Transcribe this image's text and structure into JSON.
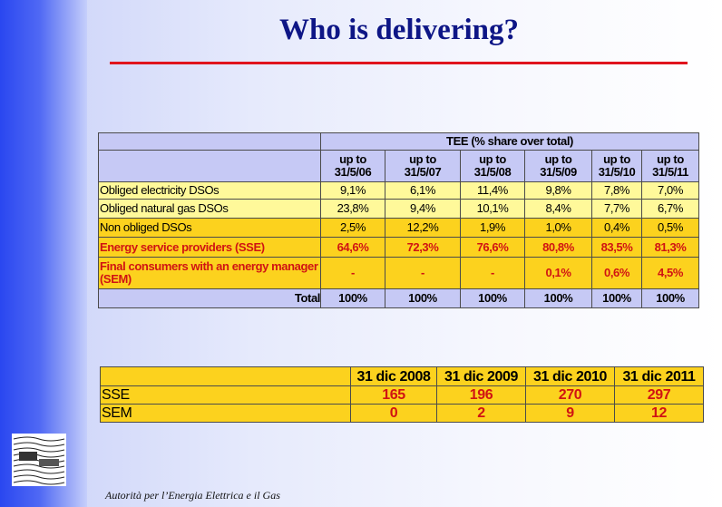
{
  "slide": {
    "title": "Who is delivering?",
    "footer": "Autorità per l’Energia Elettrica e il Gas"
  },
  "table1": {
    "super_header": "TEE  (% share over total)",
    "columns": [
      [
        "up to",
        "31/5/06"
      ],
      [
        "up to",
        "31/5/07"
      ],
      [
        "up to",
        "31/5/08"
      ],
      [
        "up to",
        "31/5/09"
      ],
      [
        "up to",
        "31/5/10"
      ],
      [
        "up to",
        "31/5/11"
      ]
    ],
    "rows": [
      {
        "label": "Obliged electricity DSOs",
        "values": [
          "9,1%",
          "6,1%",
          "11,4%",
          "9,8%",
          "7,8%",
          "7,0%"
        ]
      },
      {
        "label": "Obliged natural gas DSOs",
        "values": [
          "23,8%",
          "9,4%",
          "10,1%",
          "8,4%",
          "7,7%",
          "6,7%"
        ]
      },
      {
        "label": "Non obliged DSOs",
        "values": [
          "2,5%",
          "12,2%",
          "1,9%",
          "1,0%",
          "0,4%",
          "0,5%"
        ]
      },
      {
        "label": "Energy service providers (SSE)",
        "values": [
          "64,6%",
          "72,3%",
          "76,6%",
          "80,8%",
          "83,5%",
          "81,3%"
        ]
      },
      {
        "label": "Final consumers with an energy manager (SEM)",
        "values": [
          "-",
          "-",
          "-",
          "0,1%",
          "0,6%",
          "4,5%"
        ]
      }
    ],
    "total": {
      "label": "Total",
      "values": [
        "100%",
        "100%",
        "100%",
        "100%",
        "100%",
        "100%"
      ]
    }
  },
  "table2": {
    "columns": [
      "31 dic 2008",
      "31 dic 2009",
      "31 dic 2010",
      "31 dic 2011"
    ],
    "rows": [
      {
        "label": "SSE",
        "values": [
          "165",
          "196",
          "270",
          "297"
        ]
      },
      {
        "label": "SEM",
        "values": [
          "0",
          "2",
          "9",
          "12"
        ]
      }
    ]
  }
}
